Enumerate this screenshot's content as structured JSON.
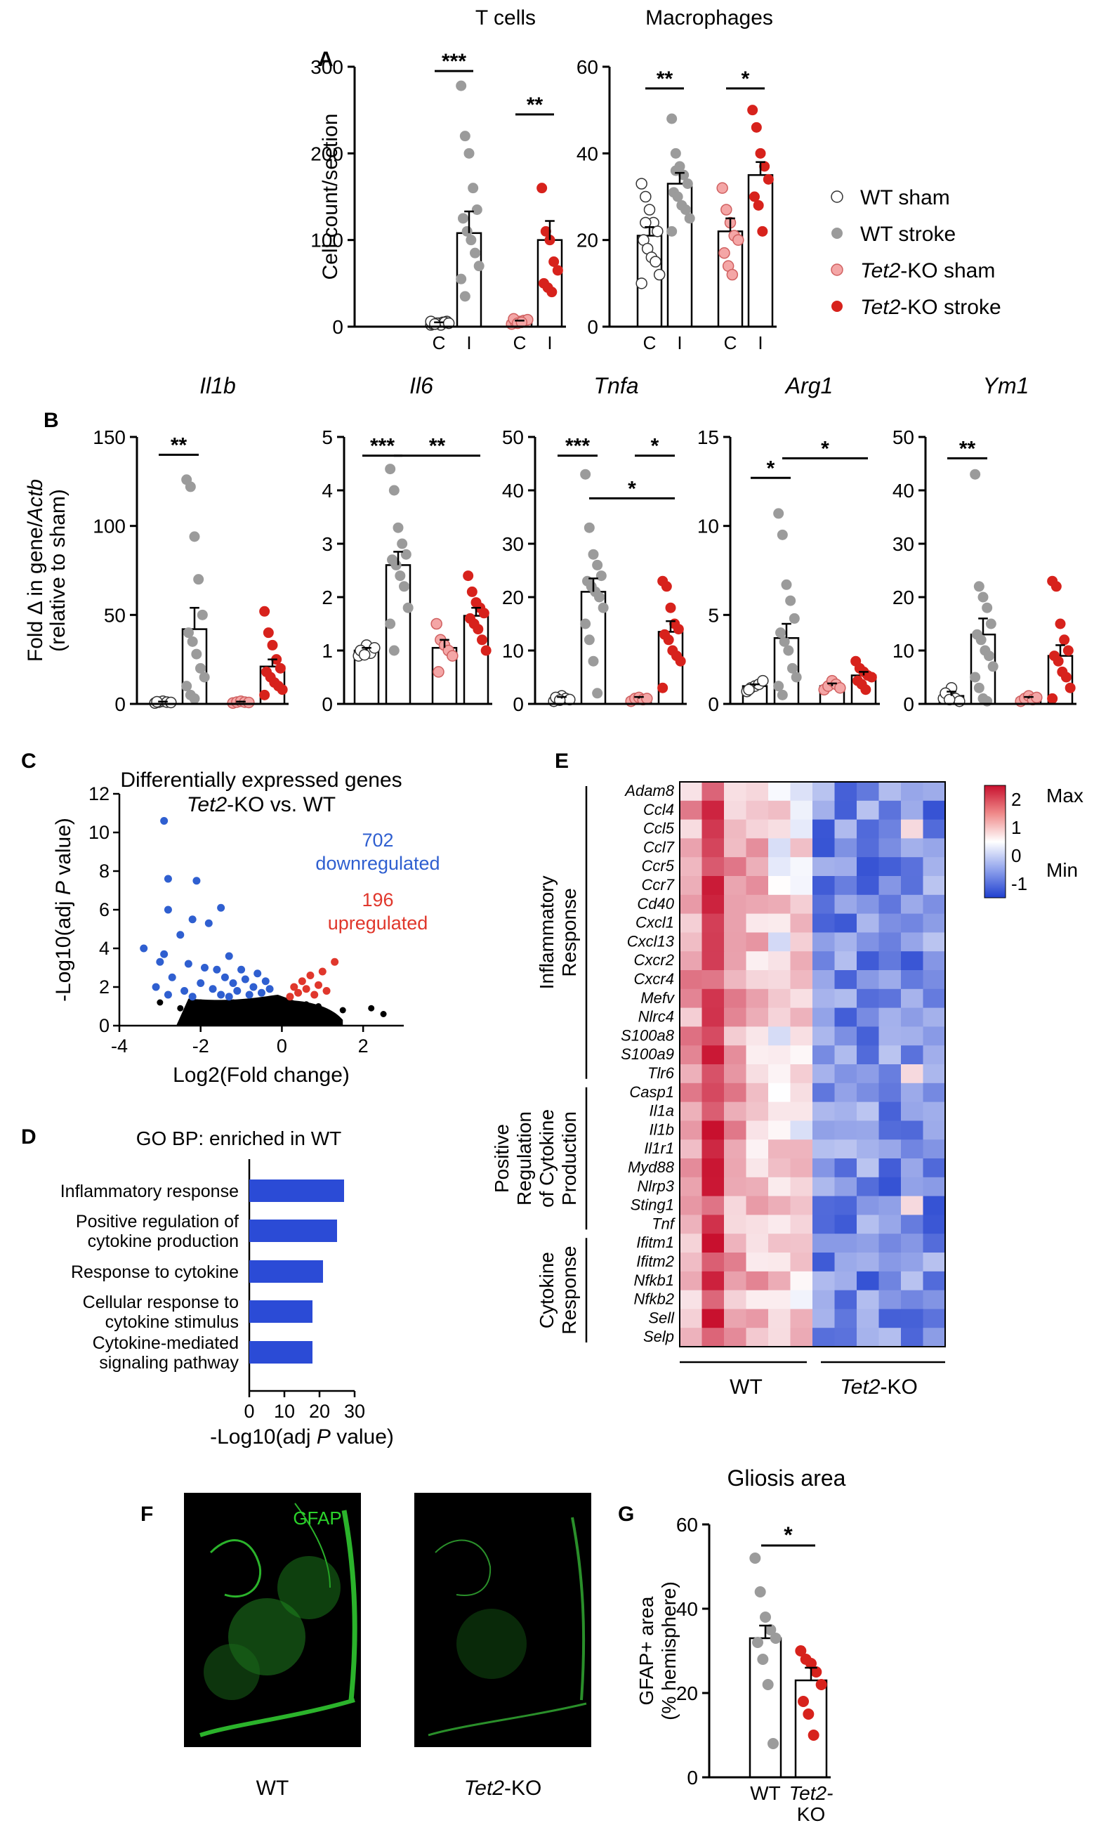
{
  "colors": {
    "wt_sham": "#ffffff",
    "wt_stroke": "#9b9b9b",
    "ko_sham": "#f4a6a6",
    "ko_stroke": "#d7221c",
    "down": "#2f5fd0",
    "up": "#e0372c",
    "ns": "#000000",
    "bar_blue": "#2b4bd6",
    "heat_max": "#c8102e",
    "heat_min": "#1f3fcf"
  },
  "legend": {
    "items": [
      {
        "prefix": "",
        "italic": "",
        "suffix": "WT sham",
        "key": "wt_sham"
      },
      {
        "prefix": "",
        "italic": "",
        "suffix": "WT stroke",
        "key": "wt_stroke"
      },
      {
        "prefix": "",
        "italic": "Tet2",
        "suffix": "-KO sham",
        "key": "ko_sham"
      },
      {
        "prefix": "",
        "italic": "Tet2",
        "suffix": "-KO stroke",
        "key": "ko_stroke"
      }
    ]
  },
  "panel_letters": {
    "A": "A",
    "B": "B",
    "C": "C",
    "D": "D",
    "E": "E",
    "F": "F",
    "G": "G"
  },
  "chart_data": [
    {
      "id": "A1",
      "type": "bar",
      "title": "T cells",
      "ylabel": "Cell count/section",
      "ylim": [
        0,
        300
      ],
      "yticks": [
        "0",
        "100",
        "200",
        "300"
      ],
      "categories": [
        "C",
        "I",
        "C",
        "I"
      ],
      "groups": [
        "wt_sham",
        "wt_stroke",
        "ko_sham",
        "ko_stroke"
      ],
      "means": [
        4,
        108,
        6,
        100
      ],
      "sem": [
        1,
        25,
        1,
        22
      ],
      "points": [
        [
          2,
          3,
          4,
          5,
          6,
          3,
          4,
          2,
          5,
          4,
          6,
          3
        ],
        [
          278,
          220,
          200,
          160,
          135,
          125,
          110,
          100,
          85,
          70,
          55,
          35
        ],
        [
          3,
          5,
          6,
          7,
          8,
          9,
          4,
          5
        ],
        [
          160,
          110,
          100,
          75,
          65,
          50,
          45,
          40
        ]
      ],
      "significance": [
        {
          "from": 0,
          "to": 1,
          "label": "***",
          "level": 295
        },
        {
          "from": 2,
          "to": 3,
          "label": "**",
          "level": 245
        }
      ]
    },
    {
      "id": "A2",
      "type": "bar",
      "title": "Macrophages",
      "ylabel": "",
      "ylim": [
        0,
        60
      ],
      "yticks": [
        "0",
        "20",
        "40",
        "60"
      ],
      "categories": [
        "C",
        "I",
        "C",
        "I"
      ],
      "groups": [
        "wt_sham",
        "wt_stroke",
        "ko_sham",
        "ko_stroke"
      ],
      "means": [
        21,
        33,
        22,
        35
      ],
      "sem": [
        2,
        2.5,
        3,
        3
      ],
      "points": [
        [
          33,
          30,
          27,
          24,
          22,
          20,
          18,
          16,
          15,
          12,
          10,
          24
        ],
        [
          48,
          40,
          37,
          35,
          33,
          31,
          30,
          28,
          27,
          25,
          22,
          36
        ],
        [
          32,
          27,
          24,
          21,
          20,
          17,
          14,
          12
        ],
        [
          50,
          46,
          40,
          37,
          34,
          30,
          28,
          22
        ]
      ],
      "significance": [
        {
          "from": 0,
          "to": 1,
          "label": "**",
          "level": 55
        },
        {
          "from": 2,
          "to": 3,
          "label": "*",
          "level": 55
        }
      ]
    },
    {
      "id": "B1",
      "type": "bar",
      "title": "Il1b",
      "ylabel": "Fold Δ in gene/Actb (relative to sham)",
      "ylim": [
        0,
        150
      ],
      "yticks": [
        "0",
        "50",
        "100",
        "150"
      ],
      "categories": [
        "",
        "",
        "",
        ""
      ],
      "groups": [
        "wt_sham",
        "wt_stroke",
        "ko_sham",
        "ko_stroke"
      ],
      "means": [
        1,
        42,
        1,
        21
      ],
      "sem": [
        0.3,
        12,
        0.3,
        4
      ],
      "points": [
        [
          0.5,
          1,
          1.5,
          1,
          0.8,
          1.2
        ],
        [
          126,
          122,
          94,
          70,
          50,
          40,
          35,
          28,
          20,
          15,
          10,
          5,
          3
        ],
        [
          0.5,
          1,
          1.5,
          1,
          0.8
        ],
        [
          52,
          40,
          33,
          25,
          20,
          18,
          15,
          12,
          10,
          8,
          5
        ]
      ],
      "significance": [
        {
          "from": 0,
          "to": 1,
          "label": "**",
          "level": 140
        }
      ]
    },
    {
      "id": "B2",
      "type": "bar",
      "title": "Il6",
      "ylabel": "",
      "ylim": [
        0,
        5
      ],
      "yticks": [
        "0",
        "1",
        "2",
        "3",
        "4",
        "5"
      ],
      "categories": [
        "",
        "",
        "",
        ""
      ],
      "groups": [
        "wt_sham",
        "wt_stroke",
        "ko_sham",
        "ko_stroke"
      ],
      "means": [
        1,
        2.6,
        1.05,
        1.65
      ],
      "sem": [
        0.05,
        0.25,
        0.15,
        0.15
      ],
      "points": [
        [
          0.9,
          1.0,
          1.1,
          0.95,
          1.05,
          1.0,
          0.92
        ],
        [
          4.4,
          4.0,
          3.3,
          3.0,
          2.8,
          2.7,
          2.6,
          2.4,
          2.2,
          1.8,
          1.5,
          1.0
        ],
        [
          1.5,
          1.2,
          1.1,
          1.0,
          0.9,
          0.6
        ],
        [
          2.4,
          2.1,
          1.9,
          1.8,
          1.7,
          1.6,
          1.5,
          1.4,
          1.2,
          1.0
        ]
      ],
      "significance": [
        {
          "from": 0,
          "to": 1,
          "label": "***",
          "level": 4.65
        },
        {
          "from": 1,
          "to": 3,
          "label": "**",
          "level": 4.65
        }
      ]
    },
    {
      "id": "B3",
      "type": "bar",
      "title": "Tnfa",
      "ylabel": "",
      "ylim": [
        0,
        50
      ],
      "yticks": [
        "0",
        "10",
        "20",
        "30",
        "40",
        "50"
      ],
      "categories": [
        "",
        "",
        "",
        ""
      ],
      "groups": [
        "wt_sham",
        "wt_stroke",
        "ko_sham",
        "ko_stroke"
      ],
      "means": [
        1,
        21,
        1,
        13.5
      ],
      "sem": [
        0.3,
        2.5,
        0.3,
        2
      ],
      "points": [
        [
          0.5,
          1,
          1.5,
          1,
          0.8,
          1.2,
          0.7
        ],
        [
          43,
          33,
          28,
          26,
          24,
          23,
          22,
          21,
          20,
          18,
          15,
          12,
          8,
          2
        ],
        [
          0.5,
          1,
          1.2,
          0.8,
          1.0
        ],
        [
          23,
          22,
          18,
          15,
          14,
          13,
          12,
          10,
          9,
          8,
          3
        ]
      ],
      "significance": [
        {
          "from": 0,
          "to": 1,
          "label": "***",
          "level": 46.5
        },
        {
          "from": 2,
          "to": 3,
          "label": "*",
          "level": 46.5
        },
        {
          "from": 1,
          "to": 3,
          "label": "*",
          "level": 38.5
        }
      ]
    },
    {
      "id": "B4",
      "type": "bar",
      "title": "Arg1",
      "ylabel": "",
      "ylim": [
        0,
        15
      ],
      "yticks": [
        "0",
        "5",
        "10",
        "15"
      ],
      "categories": [
        "",
        "",
        "",
        ""
      ],
      "groups": [
        "wt_sham",
        "wt_stroke",
        "ko_sham",
        "ko_stroke"
      ],
      "means": [
        1,
        3.7,
        1,
        1.6
      ],
      "sem": [
        0.1,
        0.8,
        0.15,
        0.2
      ],
      "points": [
        [
          0.7,
          0.9,
          1.0,
          1.1,
          1.3,
          0.8
        ],
        [
          10.7,
          9.5,
          6.7,
          5.8,
          4.8,
          4.0,
          3.5,
          3.0,
          2.0,
          1.5,
          1.0,
          0.5
        ],
        [
          0.8,
          1.0,
          1.3,
          1.1,
          0.9
        ],
        [
          2.4,
          2.0,
          1.8,
          1.6,
          1.5,
          1.3,
          1.1,
          0.8
        ]
      ],
      "significance": [
        {
          "from": 0,
          "to": 1,
          "label": "*",
          "level": 12.7
        },
        {
          "from": 1,
          "to": 3,
          "label": "*",
          "level": 13.8
        }
      ]
    },
    {
      "id": "B5",
      "type": "bar",
      "title": "Ym1",
      "ylabel": "",
      "ylim": [
        0,
        50
      ],
      "yticks": [
        "0",
        "10",
        "20",
        "30",
        "40",
        "50"
      ],
      "categories": [
        "",
        "",
        "",
        ""
      ],
      "groups": [
        "wt_sham",
        "wt_stroke",
        "ko_sham",
        "ko_stroke"
      ],
      "means": [
        1.5,
        13,
        1,
        9
      ],
      "sem": [
        0.8,
        3,
        0.3,
        2
      ],
      "points": [
        [
          1,
          2,
          3,
          1,
          0.5,
          2,
          0.8
        ],
        [
          43,
          22,
          20,
          18,
          15,
          13,
          12,
          10,
          9,
          7,
          5,
          3,
          1,
          0.5
        ],
        [
          0.5,
          1,
          1.5,
          0.8,
          1.2
        ],
        [
          23,
          22,
          15,
          12,
          10,
          9,
          8,
          6,
          5,
          3,
          1
        ]
      ],
      "significance": [
        {
          "from": 0,
          "to": 1,
          "label": "**",
          "level": 46
        }
      ]
    },
    {
      "id": "C",
      "type": "scatter",
      "title": "Differentially expressed genes",
      "title2_italic": "Tet2",
      "title2_rest": "-KO vs. WT",
      "xlabel": "Log2(Fold change)",
      "ylabel": "-Log10(adj P value)",
      "xlim": [
        -4,
        3
      ],
      "ylim": [
        0,
        12
      ],
      "xticks": [
        "-4",
        "-2",
        "0",
        "2"
      ],
      "yticks": [
        "0",
        "2",
        "4",
        "6",
        "8",
        "10",
        "12"
      ],
      "annotations": [
        {
          "count": "702",
          "label": "downregulated",
          "key": "down"
        },
        {
          "count": "196",
          "label": "upregulated",
          "key": "up"
        }
      ],
      "down_points": [
        [
          -2.9,
          10.6
        ],
        [
          -2.8,
          7.6
        ],
        [
          -2.1,
          7.5
        ],
        [
          -1.5,
          6.1
        ],
        [
          -2.8,
          6.0
        ],
        [
          -2.2,
          5.5
        ],
        [
          -1.8,
          5.3
        ],
        [
          -2.5,
          4.7
        ],
        [
          -3.4,
          4.0
        ],
        [
          -2.9,
          3.7
        ],
        [
          -1.3,
          3.6
        ],
        [
          -3.0,
          3.3
        ],
        [
          -2.3,
          3.2
        ],
        [
          -1.9,
          3.0
        ],
        [
          -1.6,
          2.9
        ],
        [
          -1.0,
          2.9
        ],
        [
          -0.6,
          2.7
        ],
        [
          -2.7,
          2.5
        ],
        [
          -1.4,
          2.5
        ],
        [
          -0.9,
          2.4
        ],
        [
          -0.4,
          2.3
        ],
        [
          -2.0,
          2.2
        ],
        [
          -1.2,
          2.2
        ],
        [
          -3.1,
          2.0
        ],
        [
          -0.7,
          2.0
        ],
        [
          -1.7,
          1.9
        ],
        [
          -0.3,
          1.9
        ],
        [
          -2.4,
          1.8
        ],
        [
          -1.1,
          1.8
        ],
        [
          -0.5,
          1.7
        ],
        [
          -2.8,
          1.6
        ],
        [
          -1.5,
          1.6
        ],
        [
          -0.8,
          1.6
        ],
        [
          -2.2,
          1.5
        ],
        [
          -1.3,
          1.5
        ]
      ],
      "up_points": [
        [
          1.3,
          3.3
        ],
        [
          1.0,
          2.8
        ],
        [
          0.7,
          2.6
        ],
        [
          0.5,
          2.3
        ],
        [
          0.9,
          2.1
        ],
        [
          0.3,
          2.0
        ],
        [
          0.6,
          1.9
        ],
        [
          1.1,
          1.8
        ],
        [
          0.4,
          1.7
        ],
        [
          0.8,
          1.6
        ],
        [
          0.2,
          1.5
        ]
      ],
      "ns_points": [
        [
          2.2,
          0.9
        ],
        [
          2.5,
          0.6
        ],
        [
          1.5,
          0.8
        ],
        [
          1.2,
          0.5
        ],
        [
          -3.0,
          1.2
        ],
        [
          -2.5,
          0.9
        ],
        [
          -2.0,
          1.2
        ],
        [
          -1.6,
          1.0
        ],
        [
          -1.2,
          1.2
        ],
        [
          -0.9,
          1.0
        ],
        [
          -0.6,
          1.1
        ],
        [
          -0.4,
          0.8
        ],
        [
          -0.2,
          0.5
        ],
        [
          0.0,
          0.3
        ],
        [
          0.2,
          0.6
        ],
        [
          0.4,
          0.9
        ],
        [
          0.6,
          1.1
        ],
        [
          0.9,
          1.0
        ],
        [
          -1.4,
          0.6
        ],
        [
          -0.8,
          0.5
        ],
        [
          -2.2,
          0.6
        ],
        [
          -1.8,
          0.4
        ]
      ]
    },
    {
      "id": "D",
      "type": "bar",
      "orientation": "horizontal",
      "title": "GO BP: enriched in WT",
      "xlabel": "-Log10(adj P value)",
      "xlim": [
        0,
        30
      ],
      "xticks": [
        "0",
        "10",
        "20",
        "30"
      ],
      "categories": [
        [
          "Inflammatory response"
        ],
        [
          "Positive regulation of",
          "cytokine production"
        ],
        [
          "Response to cytokine"
        ],
        [
          "Cellular response to",
          "cytokine stimulus"
        ],
        [
          "Cytokine-mediated",
          "signaling pathway"
        ]
      ],
      "values": [
        27,
        25,
        21,
        18,
        18
      ]
    },
    {
      "id": "E",
      "type": "heatmap",
      "genes": [
        "Adam8",
        "Ccl4",
        "Ccl5",
        "Ccl7",
        "Ccr5",
        "Ccr7",
        "Cd40",
        "Cxcl1",
        "Cxcl13",
        "Cxcr2",
        "Cxcr4",
        "Mefv",
        "Nlrc4",
        "S100a8",
        "S100a9",
        "Tlr6",
        "Casp1",
        "Il1a",
        "Il1b",
        "Il1r1",
        "Myd88",
        "Nlrp3",
        "Sting1",
        "Tnf",
        "Ifitm1",
        "Ifitm2",
        "Nfkb1",
        "Nfkb2",
        "Sell",
        "Selp"
      ],
      "groups": [
        {
          "lines": [
            "Inflammatory",
            "Response"
          ],
          "start": 0,
          "end": 15
        },
        {
          "lines": [
            "Positive",
            "Regulation",
            "of Cytokine",
            "Production"
          ],
          "start": 16,
          "end": 23
        },
        {
          "lines": [
            "Cytokine",
            "Response"
          ],
          "start": 24,
          "end": 29
        }
      ],
      "columns": [
        "WT",
        "WT",
        "WT",
        "WT",
        "WT",
        "WT",
        "Tet2-KO",
        "Tet2-KO",
        "Tet2-KO",
        "Tet2-KO",
        "Tet2-KO",
        "Tet2-KO"
      ],
      "xlabel_wt": "WT",
      "xlabel_ko_italic": "Tet2",
      "xlabel_ko_rest": "-KO",
      "colorbar": {
        "max": "Max",
        "min": "Min",
        "ticks": [
          "2",
          "1",
          "0",
          "-1"
        ],
        "range": [
          -1.5,
          2.5
        ]
      }
    },
    {
      "id": "F",
      "type": "image",
      "label": "GFAP",
      "captions": [
        {
          "italic": "",
          "rest": "WT"
        },
        {
          "italic": "Tet2",
          "rest": "-KO"
        }
      ]
    },
    {
      "id": "G",
      "type": "bar",
      "title": "Gliosis area",
      "ylabel": "GFAP+ area (% hemisphere)",
      "ylim": [
        0,
        60
      ],
      "yticks": [
        "0",
        "20",
        "40",
        "60"
      ],
      "categories": [
        "WT",
        "Tet2-\nKO"
      ],
      "groups": [
        "wt_stroke",
        "ko_stroke"
      ],
      "means": [
        33,
        23
      ],
      "sem": [
        3,
        3
      ],
      "points": [
        [
          52,
          44,
          38,
          35,
          33,
          32,
          28,
          22,
          8
        ],
        [
          30,
          28,
          27,
          25,
          22,
          18,
          15,
          10
        ]
      ],
      "significance": [
        {
          "from": 0,
          "to": 1,
          "label": "*",
          "level": 55
        }
      ]
    }
  ]
}
